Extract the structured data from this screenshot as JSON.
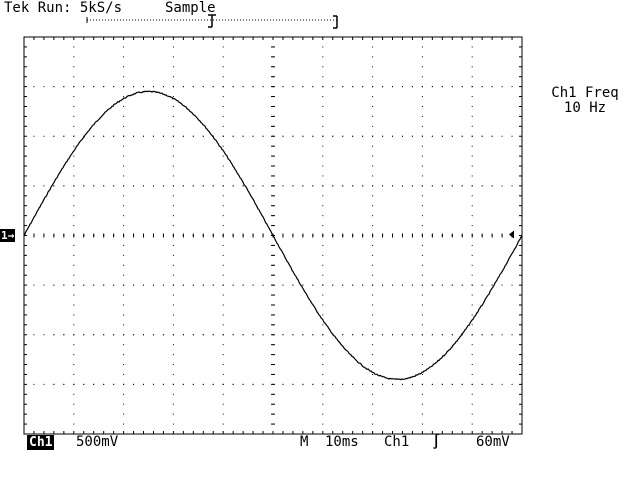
{
  "status": {
    "run_state": "Tek Run: 5kS/s",
    "acq_mode": "Sample"
  },
  "channel": {
    "label": "Ch1",
    "marker": "1→",
    "volts_per_div": "500mV"
  },
  "timebase": {
    "prefix": "M",
    "time_per_div": "10ms",
    "trigger_source": "Ch1",
    "trigger_slope_icon": "rising-edge-icon",
    "trigger_slope_glyph": "∫",
    "trigger_level": "60mV"
  },
  "measurement": {
    "title": "Ch1 Freq",
    "value": "10 Hz"
  },
  "colors": {
    "background": "#ffffff",
    "trace": "#000000",
    "graticule": "#000000"
  },
  "waveform": {
    "shape": "sine",
    "amplitude_divisions": 2.9,
    "cycles_on_screen": 1,
    "divisions_x": 10,
    "divisions_y": 8
  }
}
